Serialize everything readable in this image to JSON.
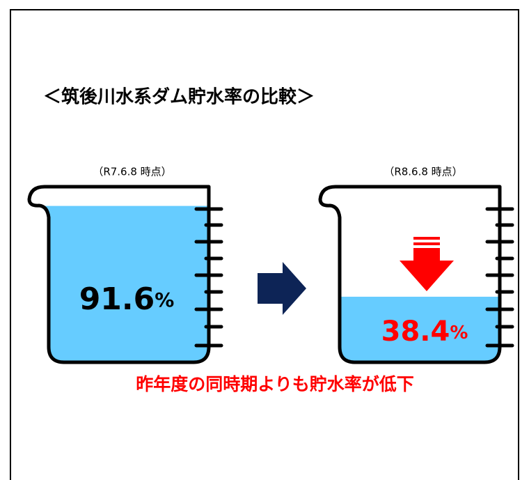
{
  "title": "＜筑後川水系ダム貯水率の比較＞",
  "beakers": [
    {
      "time": "（R7.6.8 時点）",
      "value": 91.6,
      "unit": "%"
    },
    {
      "time": "（R8.6.8 時点）",
      "value": 38.4,
      "unit": "%"
    }
  ],
  "note": "昨年度の同時期よりも貯水率が低下"
}
